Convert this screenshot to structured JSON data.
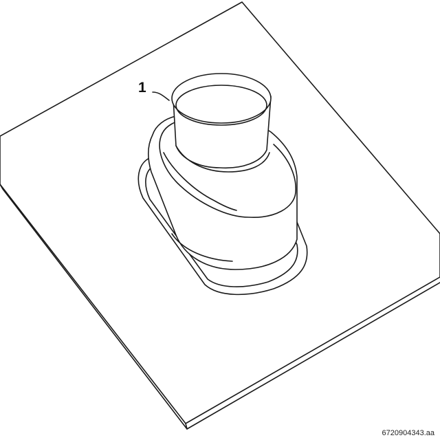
{
  "callout": {
    "label": "1"
  },
  "document": {
    "number": "6720904343.aa"
  }
}
